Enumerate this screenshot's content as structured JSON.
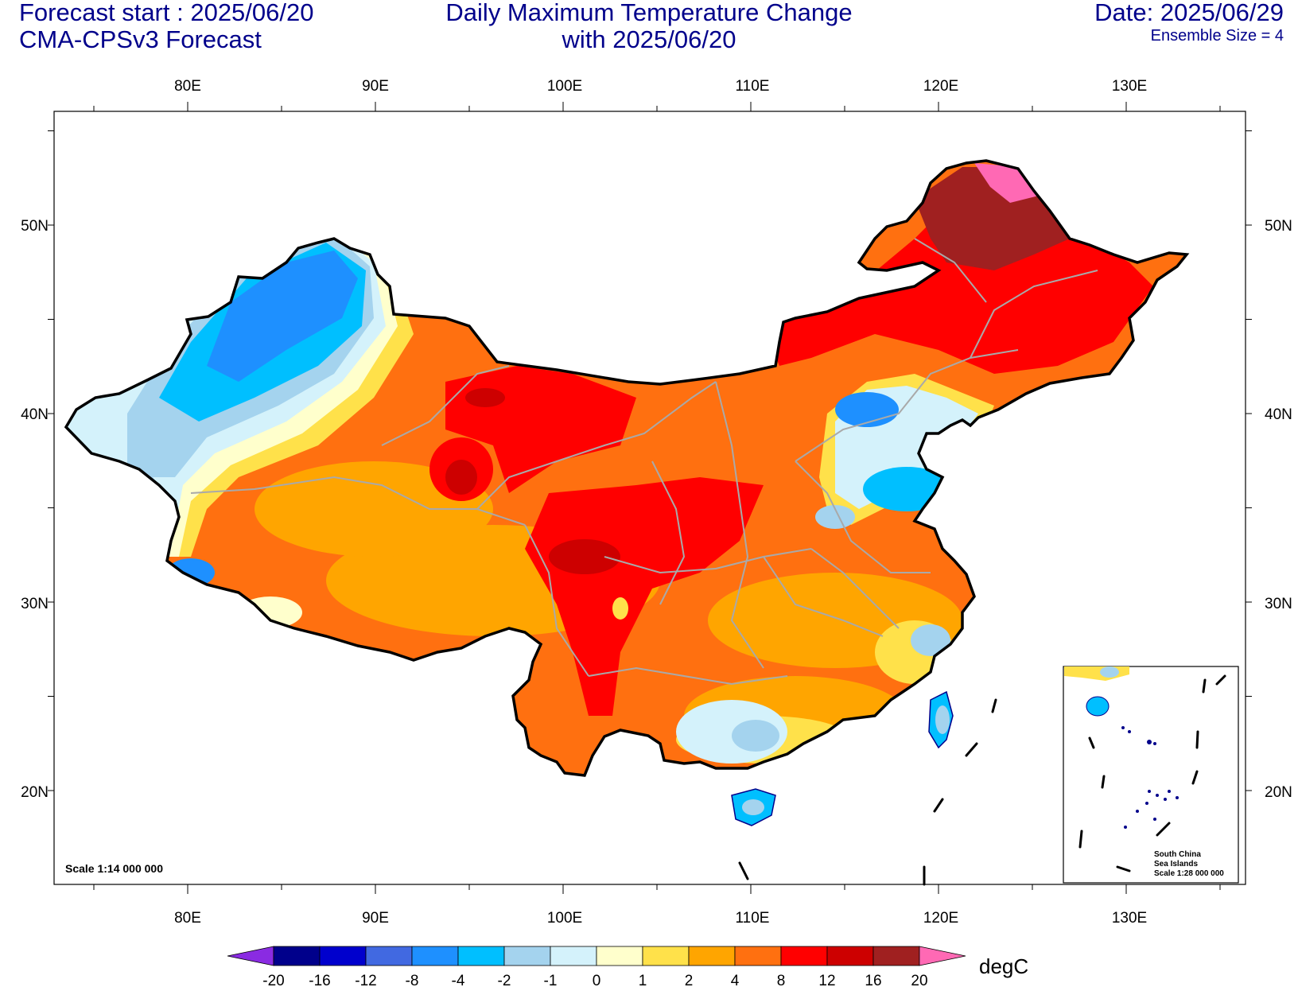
{
  "header": {
    "forecast_start": "Forecast start : 2025/06/20",
    "model": "CMA-CPSv3 Forecast",
    "title_line1": "Daily Maximum Temperature Change",
    "title_line2": "with 2025/06/20",
    "date": "Date: 2025/06/29",
    "ensemble": "Ensemble Size = 4"
  },
  "axes": {
    "lon_labels": [
      "80E",
      "90E",
      "100E",
      "110E",
      "120E",
      "130E"
    ],
    "lat_labels": [
      "50N",
      "40N",
      "30N",
      "20N"
    ]
  },
  "scale_main": "Scale 1:14 000 000",
  "inset": {
    "line1": "South China",
    "line2": "Sea Islands",
    "line3": "Scale 1:28 000 000"
  },
  "colorbar": {
    "unit": "degC",
    "tick_labels": [
      "-20",
      "-16",
      "-12",
      "-8",
      "-4",
      "-2",
      "-1",
      "0",
      "1",
      "2",
      "4",
      "8",
      "12",
      "16",
      "20"
    ],
    "colors": [
      "#8a2be2",
      "#00008b",
      "#0000cd",
      "#4169e1",
      "#1e90ff",
      "#00bfff",
      "#a4d3ee",
      "#d4f2fb",
      "#ffffcc",
      "#ffe14a",
      "#ffa500",
      "#ff7010",
      "#ff0000",
      "#cd0000",
      "#a02020",
      "#ff69b4"
    ]
  },
  "colors": {
    "title_color": "#00008b"
  }
}
